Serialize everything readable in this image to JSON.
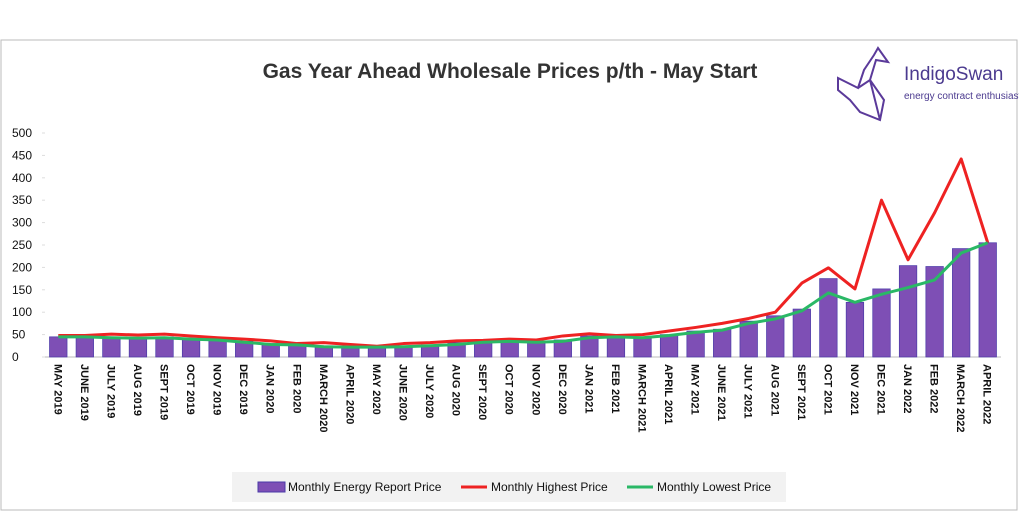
{
  "chart_data": {
    "type": "bar-line",
    "title": "Gas Year Ahead Wholesale Prices p/th - May Start",
    "logo": {
      "name": "IndigoSwan",
      "tagline": "energy contract enthusiasts"
    },
    "categories": [
      "MAY 2019",
      "JUNE 2019",
      "JULY 2019",
      "AUG 2019",
      "SEPT 2019",
      "OCT 2019",
      "NOV 2019",
      "DEC 2019",
      "JAN 2020",
      "FEB 2020",
      "MARCH 2020",
      "APRIL 2020",
      "MAY 2020",
      "JUNE 2020",
      "JULY 2020",
      "AUG 2020",
      "SEPT 2020",
      "OCT 2020",
      "NOV 2020",
      "DEC 2020",
      "JAN 2021",
      "FEB 2021",
      "MARCH 2021",
      "APRIL 2021",
      "MAY 2021",
      "JUNE 2021",
      "JULY 2021",
      "AUG 2021",
      "SEPT 2021",
      "OCT 2021",
      "NOV 2021",
      "DEC 2021",
      "JAN 2022",
      "FEB 2022",
      "MARCH 2022",
      "APRIL 2022"
    ],
    "series": [
      {
        "name": "Monthly Energy Report Price",
        "type": "bar",
        "color": "#7e4fb5",
        "values": [
          45,
          45,
          45,
          43,
          45,
          42,
          40,
          35,
          30,
          27,
          25,
          23,
          22,
          25,
          27,
          32,
          34,
          37,
          35,
          38,
          47,
          45,
          45,
          50,
          58,
          62,
          80,
          92,
          107,
          175,
          122,
          152,
          204,
          202,
          242,
          255
        ]
      },
      {
        "name": "Monthly Highest Price",
        "type": "line",
        "color": "#ee2222",
        "values": [
          48,
          48,
          51,
          49,
          51,
          47,
          43,
          40,
          36,
          30,
          32,
          28,
          24,
          30,
          32,
          36,
          37,
          40,
          38,
          47,
          52,
          48,
          50,
          58,
          66,
          75,
          86,
          100,
          165,
          199,
          152,
          350,
          217,
          322,
          442,
          255
        ]
      },
      {
        "name": "Monthly Lowest Price",
        "type": "line",
        "color": "#2ab866",
        "values": [
          45,
          45,
          43,
          42,
          43,
          40,
          38,
          33,
          28,
          27,
          23,
          22,
          22,
          23,
          25,
          28,
          33,
          35,
          33,
          35,
          43,
          45,
          43,
          48,
          55,
          60,
          75,
          85,
          103,
          143,
          122,
          140,
          155,
          172,
          232,
          255
        ]
      }
    ],
    "ylim": [
      0,
      500
    ],
    "yticks": [
      0,
      50,
      100,
      150,
      200,
      250,
      300,
      350,
      400,
      450,
      500
    ],
    "legend": "bottom"
  }
}
